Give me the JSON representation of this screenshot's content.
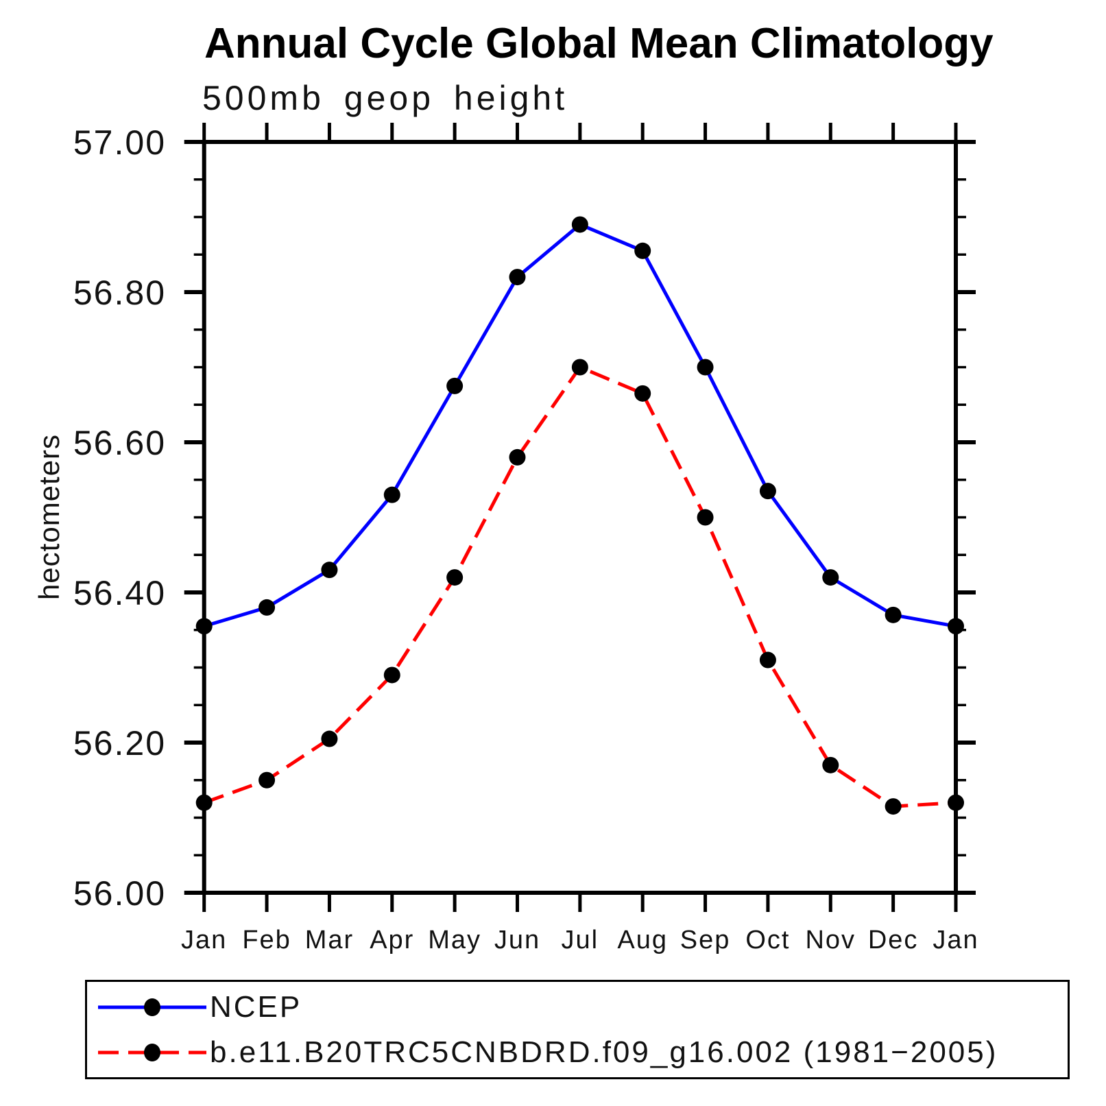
{
  "chart_data": {
    "type": "line",
    "title": "Annual Cycle Global Mean Climatology",
    "subtitle": "500mb geop height",
    "ylabel": "hectometers",
    "ylim": [
      56.0,
      57.0
    ],
    "ytick_step": 0.2,
    "ytick_minor_step": 0.05,
    "ytick_labels": [
      "57.00",
      "56.80",
      "56.60",
      "56.40",
      "56.20",
      "56.00"
    ],
    "categories": [
      "Jan",
      "Feb",
      "Mar",
      "Apr",
      "May",
      "Jun",
      "Jul",
      "Aug",
      "Sep",
      "Oct",
      "Nov",
      "Dec",
      "Jan"
    ],
    "series": [
      {
        "name": "NCEP",
        "color": "#0000ff",
        "style": "solid",
        "marker": "filled-circle",
        "marker_color": "#000000",
        "values": [
          56.355,
          56.38,
          56.43,
          56.53,
          56.675,
          56.82,
          56.89,
          56.855,
          56.7,
          56.535,
          56.42,
          56.37,
          56.355
        ]
      },
      {
        "name": "b.e11.B20TRC5CNBDRD.f09_g16.002 (1981−2005)",
        "color": "#ff0000",
        "style": "dashed",
        "marker": "filled-circle",
        "marker_color": "#000000",
        "values": [
          56.12,
          56.15,
          56.205,
          56.29,
          56.42,
          56.58,
          56.7,
          56.665,
          56.5,
          56.31,
          56.17,
          56.115,
          56.12
        ]
      }
    ],
    "legend_position": "bottom",
    "grid": "off",
    "axis_color": "#000000"
  }
}
